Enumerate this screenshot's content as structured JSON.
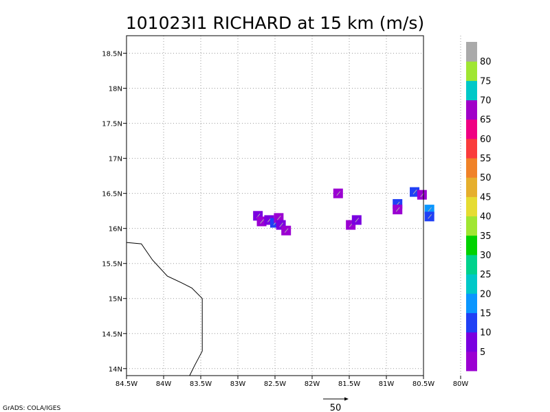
{
  "chart_data": {
    "type": "scatter",
    "title": "101023I1 RICHARD at 15 km (m/s)",
    "x_range": [
      -84.5,
      -80.5
    ],
    "y_range": [
      13.9,
      18.75
    ],
    "x_ticks": [
      -84.5,
      -84,
      -83.5,
      -83,
      -82.5,
      -82,
      -81.5,
      -81,
      -80.5,
      -80
    ],
    "x_tick_labels": [
      "84.5W",
      "84W",
      "83.5W",
      "83W",
      "82.5W",
      "82W",
      "81.5W",
      "81W",
      "80.5W",
      "80W"
    ],
    "y_ticks": [
      14,
      14.5,
      15,
      15.5,
      16,
      16.5,
      17,
      17.5,
      18,
      18.5
    ],
    "y_tick_labels": [
      "14N",
      "14.5N",
      "15N",
      "15.5N",
      "16N",
      "16.5N",
      "17N",
      "17.5N",
      "18N",
      "18.5N"
    ],
    "grid": true,
    "colorbar": {
      "colors": [
        "#9b00d2",
        "#7a00e0",
        "#2040f5",
        "#0a96ff",
        "#00c8c8",
        "#00d28c",
        "#00d200",
        "#a0e632",
        "#e6dc32",
        "#e6af2d",
        "#f08228",
        "#fa3c3c",
        "#f00082",
        "#a000c8",
        "#00c8c8",
        "#a0e632",
        "#aaaaaa"
      ],
      "labels": [
        "5",
        "10",
        "15",
        "20",
        "25",
        "30",
        "35",
        "40",
        "45",
        "50",
        "55",
        "60",
        "65",
        "70",
        "75",
        "80"
      ]
    },
    "coastline": [
      [
        -84.5,
        15.8
      ],
      [
        -84.3,
        15.78
      ],
      [
        -84.15,
        15.55
      ],
      [
        -83.95,
        15.32
      ],
      [
        -83.75,
        15.22
      ],
      [
        -83.62,
        15.15
      ],
      [
        -83.48,
        15.0
      ],
      [
        -83.48,
        14.25
      ],
      [
        -83.58,
        14.05
      ],
      [
        -83.65,
        13.9
      ]
    ],
    "observations": [
      {
        "lon": -82.73,
        "lat": 16.18,
        "speed": 5
      },
      {
        "lon": -82.68,
        "lat": 16.1,
        "speed": 4
      },
      {
        "lon": -82.58,
        "lat": 16.12,
        "speed": 6
      },
      {
        "lon": -82.5,
        "lat": 16.08,
        "speed": 14
      },
      {
        "lon": -82.45,
        "lat": 16.15,
        "speed": 4
      },
      {
        "lon": -82.42,
        "lat": 16.05,
        "speed": 5
      },
      {
        "lon": -82.35,
        "lat": 15.97,
        "speed": 4
      },
      {
        "lon": -81.65,
        "lat": 16.5,
        "speed": 4
      },
      {
        "lon": -81.48,
        "lat": 16.05,
        "speed": 3
      },
      {
        "lon": -81.4,
        "lat": 16.12,
        "speed": 5
      },
      {
        "lon": -80.85,
        "lat": 16.35,
        "speed": 14
      },
      {
        "lon": -80.85,
        "lat": 16.27,
        "speed": 4
      },
      {
        "lon": -80.62,
        "lat": 16.52,
        "speed": 13
      },
      {
        "lon": -80.52,
        "lat": 16.48,
        "speed": 4
      },
      {
        "lon": -80.42,
        "lat": 16.27,
        "speed": 17
      },
      {
        "lon": -80.42,
        "lat": 16.17,
        "speed": 12
      }
    ],
    "reference_vector": 50
  },
  "credit": "GrADS: COLA/IGES"
}
